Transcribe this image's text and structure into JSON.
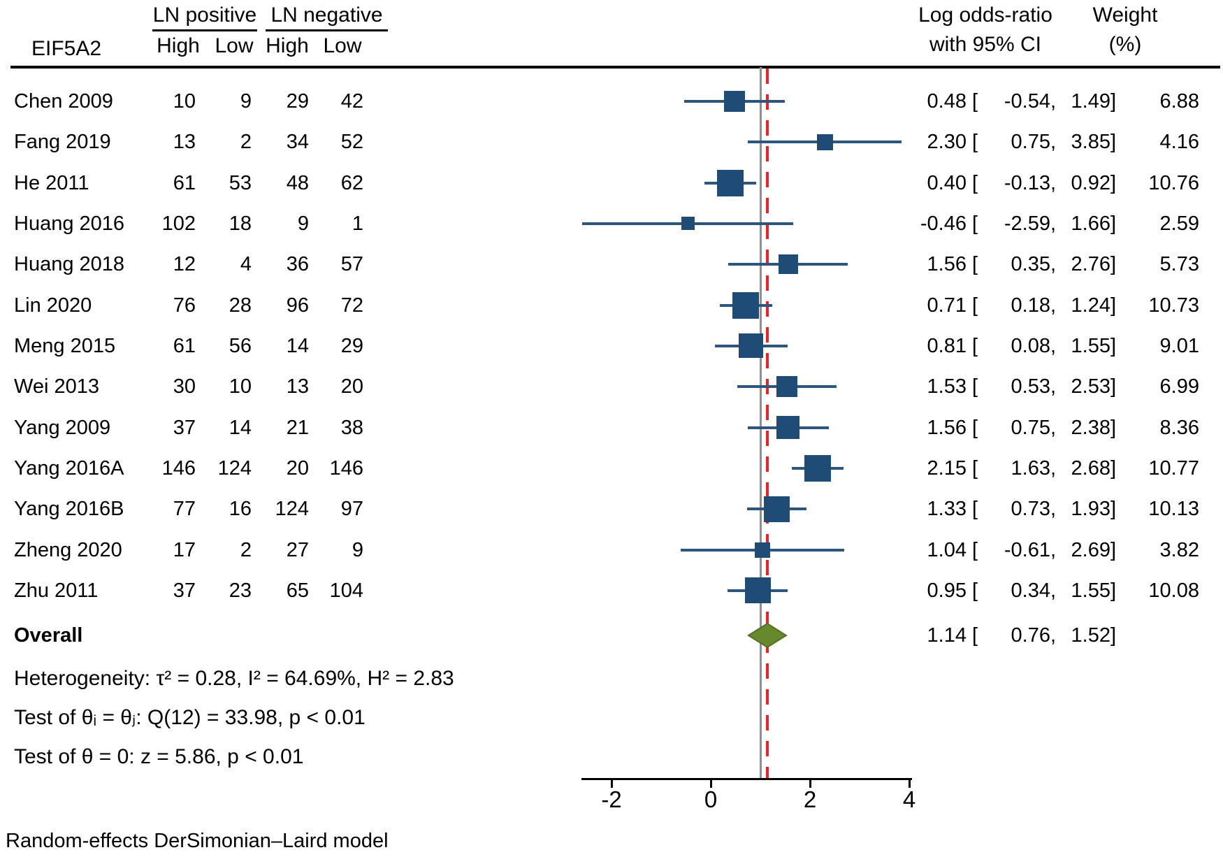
{
  "header": {
    "gene": "EIF5A2",
    "group_positive": "LN positive",
    "group_negative": "LN negative",
    "sub_pos_high": "High",
    "sub_pos_low": "Low",
    "sub_neg_high": "High",
    "sub_neg_low": "Low",
    "effect_line1": "Log odds-ratio",
    "effect_line2": "with 95% CI",
    "weight_line1": "Weight",
    "weight_line2": "(%)"
  },
  "format": {
    "open": "[",
    "comma": ",",
    "close": "]"
  },
  "chart_data": {
    "type": "forest",
    "xlabel": "Log odds-ratio",
    "x_ticks": [
      "-2",
      "0",
      "2",
      "4"
    ],
    "x_axis_range": [
      -2.6,
      4.05
    ],
    "null_ref_x": 1.0,
    "overall_ref_x": 1.14,
    "studies": [
      {
        "study": "Chen 2009",
        "lnp_high": "10",
        "lnp_low": "9",
        "lnn_high": "29",
        "lnn_low": "42",
        "est": "0.48",
        "lo": "-0.54",
        "hi": "1.49",
        "weight": "6.88"
      },
      {
        "study": "Fang 2019",
        "lnp_high": "13",
        "lnp_low": "2",
        "lnn_high": "34",
        "lnn_low": "52",
        "est": "2.30",
        "lo": "0.75",
        "hi": "3.85",
        "weight": "4.16"
      },
      {
        "study": "He 2011",
        "lnp_high": "61",
        "lnp_low": "53",
        "lnn_high": "48",
        "lnn_low": "62",
        "est": "0.40",
        "lo": "-0.13",
        "hi": "0.92",
        "weight": "10.76"
      },
      {
        "study": "Huang 2016",
        "lnp_high": "102",
        "lnp_low": "18",
        "lnn_high": "9",
        "lnn_low": "1",
        "est": "-0.46",
        "lo": "-2.59",
        "hi": "1.66",
        "weight": "2.59"
      },
      {
        "study": "Huang 2018",
        "lnp_high": "12",
        "lnp_low": "4",
        "lnn_high": "36",
        "lnn_low": "57",
        "est": "1.56",
        "lo": "0.35",
        "hi": "2.76",
        "weight": "5.73"
      },
      {
        "study": "Lin 2020",
        "lnp_high": "76",
        "lnp_low": "28",
        "lnn_high": "96",
        "lnn_low": "72",
        "est": "0.71",
        "lo": "0.18",
        "hi": "1.24",
        "weight": "10.73"
      },
      {
        "study": "Meng 2015",
        "lnp_high": "61",
        "lnp_low": "56",
        "lnn_high": "14",
        "lnn_low": "29",
        "est": "0.81",
        "lo": "0.08",
        "hi": "1.55",
        "weight": "9.01"
      },
      {
        "study": "Wei 2013",
        "lnp_high": "30",
        "lnp_low": "10",
        "lnn_high": "13",
        "lnn_low": "20",
        "est": "1.53",
        "lo": "0.53",
        "hi": "2.53",
        "weight": "6.99"
      },
      {
        "study": "Yang 2009",
        "lnp_high": "37",
        "lnp_low": "14",
        "lnn_high": "21",
        "lnn_low": "38",
        "est": "1.56",
        "lo": "0.75",
        "hi": "2.38",
        "weight": "8.36"
      },
      {
        "study": "Yang 2016A",
        "lnp_high": "146",
        "lnp_low": "124",
        "lnn_high": "20",
        "lnn_low": "146",
        "est": "2.15",
        "lo": "1.63",
        "hi": "2.68",
        "weight": "10.77"
      },
      {
        "study": "Yang 2016B",
        "lnp_high": "77",
        "lnp_low": "16",
        "lnn_high": "124",
        "lnn_low": "97",
        "est": "1.33",
        "lo": "0.73",
        "hi": "1.93",
        "weight": "10.13"
      },
      {
        "study": "Zheng 2020",
        "lnp_high": "17",
        "lnp_low": "2",
        "lnn_high": "27",
        "lnn_low": "9",
        "est": "1.04",
        "lo": "-0.61",
        "hi": "2.69",
        "weight": "3.82"
      },
      {
        "study": "Zhu 2011",
        "lnp_high": "37",
        "lnp_low": "23",
        "lnn_high": "65",
        "lnn_low": "104",
        "est": "0.95",
        "lo": "0.34",
        "hi": "1.55",
        "weight": "10.08"
      }
    ],
    "overall": {
      "label": "Overall",
      "est": "1.14",
      "lo": "0.76",
      "hi": "1.52"
    }
  },
  "stats": {
    "heterogeneity": "Heterogeneity: τ² = 0.28, I² = 64.69%, H² = 2.83",
    "test_group": "Test of θᵢ = θⱼ: Q(12) = 33.98, p < 0.01",
    "test_zero": "Test of θ = 0: z = 5.86, p < 0.01"
  },
  "footer": {
    "model_note": "Random-effects DerSimonian–Laird model"
  },
  "colors": {
    "marker": "#1e4c77",
    "ci_line": "#2d567d",
    "diamond_fill": "#68882e",
    "diamond_border": "#55701f",
    "null_line": "#8f8f8f",
    "overall_line": "#ee2224",
    "axis": "#000000"
  }
}
